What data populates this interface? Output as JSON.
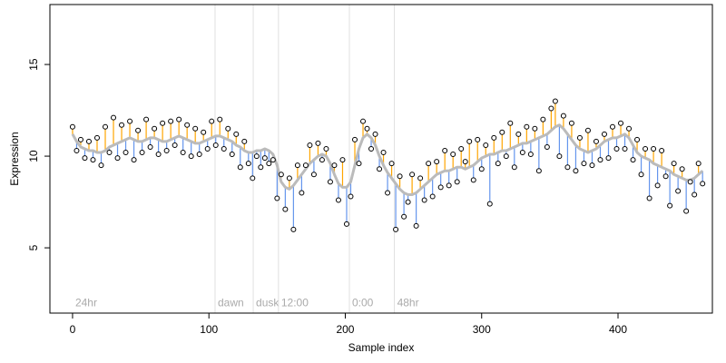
{
  "chart_data": {
    "type": "residual-line",
    "xlabel": "Sample index",
    "ylabel": "Expression",
    "xlim": [
      -16.6,
      469.2
    ],
    "ylim": [
      1.44,
      18.27
    ],
    "xticks": [
      0,
      100,
      200,
      300,
      400
    ],
    "yticks": [
      5,
      10,
      15
    ],
    "fit_color": "#bbbbbb",
    "above_color": "#ffa500",
    "below_color": "#6495ed",
    "events": [
      {
        "x": 0,
        "label": "24hr",
        "line": false
      },
      {
        "x": 104.5,
        "label": "dawn",
        "line": true
      },
      {
        "x": 132.5,
        "label": "dusk",
        "line": true
      },
      {
        "x": 151,
        "label": "12:00",
        "line": true
      },
      {
        "x": 203,
        "label": "0:00",
        "line": true
      },
      {
        "x": 236,
        "label": "48hr",
        "line": true
      }
    ],
    "event_label_y": 2.0,
    "x": [
      0,
      3,
      6,
      9,
      12,
      15,
      18,
      21,
      24,
      27,
      30,
      33,
      36,
      39,
      42,
      45,
      48,
      51,
      54,
      57,
      60,
      63,
      66,
      69,
      72,
      75,
      78,
      81,
      84,
      87,
      90,
      93,
      96,
      99,
      102,
      105,
      108,
      111,
      114,
      117,
      120,
      123,
      126,
      129,
      132,
      135,
      138,
      141,
      144,
      147,
      150,
      153,
      156,
      159,
      162,
      165,
      168,
      171,
      174,
      177,
      180,
      183,
      186,
      189,
      192,
      195,
      198,
      201,
      204,
      207,
      210,
      213,
      216,
      219,
      222,
      225,
      228,
      231,
      234,
      237,
      240,
      243,
      246,
      249,
      252,
      255,
      258,
      261,
      264,
      267,
      270,
      273,
      276,
      279,
      282,
      285,
      288,
      291,
      294,
      297,
      300,
      303,
      306,
      309,
      312,
      315,
      318,
      321,
      324,
      327,
      330,
      333,
      336,
      339,
      342,
      345,
      348,
      351,
      354,
      357,
      360,
      363,
      366,
      369,
      372,
      375,
      378,
      381,
      384,
      387,
      390,
      393,
      396,
      399,
      402,
      405,
      408,
      411,
      414,
      417,
      420,
      423,
      426,
      429,
      432,
      435,
      438,
      441,
      444,
      447,
      450,
      453,
      456,
      459,
      462
    ],
    "fitted": [
      11.2,
      10.8,
      10.5,
      10.4,
      10.3,
      10.3,
      10.2,
      10.2,
      10.3,
      10.5,
      10.6,
      10.7,
      10.8,
      10.9,
      11.0,
      10.9,
      10.8,
      10.8,
      10.9,
      11.0,
      11.0,
      10.9,
      10.8,
      10.8,
      10.9,
      11.0,
      11.1,
      11.0,
      10.9,
      10.8,
      10.7,
      10.7,
      10.8,
      10.9,
      11.0,
      11.1,
      11.1,
      11.0,
      10.9,
      10.8,
      10.6,
      10.5,
      10.3,
      10.2,
      10.2,
      10.3,
      10.3,
      10.4,
      10.3,
      10.1,
      9.5,
      8.6,
      8.3,
      8.2,
      8.4,
      8.7,
      9.0,
      9.3,
      9.6,
      9.8,
      10.0,
      10.1,
      10.0,
      9.6,
      9.0,
      8.5,
      8.3,
      8.3,
      8.6,
      9.5,
      10.4,
      11.0,
      11.2,
      11.0,
      10.6,
      10.0,
      9.5,
      9.1,
      8.8,
      8.5,
      8.2,
      8.0,
      7.9,
      7.9,
      8.0,
      8.2,
      8.4,
      8.6,
      8.8,
      9.0,
      9.1,
      9.2,
      9.2,
      9.3,
      9.4,
      9.4,
      9.3,
      9.4,
      9.5,
      9.7,
      9.9,
      10.0,
      10.1,
      10.1,
      10.2,
      10.3,
      10.3,
      10.4,
      10.5,
      10.6,
      10.7,
      10.7,
      10.8,
      10.9,
      11.0,
      11.1,
      11.2,
      11.4,
      11.6,
      11.7,
      11.5,
      11.2,
      10.9,
      10.6,
      10.4,
      10.3,
      10.2,
      10.3,
      10.4,
      10.6,
      10.8,
      10.9,
      11.0,
      11.0,
      11.1,
      11.2,
      11.0,
      10.6,
      10.2,
      10.0,
      9.9,
      9.8,
      9.6,
      9.5,
      9.4,
      9.3,
      9.2,
      9.0,
      8.9,
      8.8,
      8.7,
      8.7,
      8.8,
      9.0,
      9.2
    ],
    "values": [
      11.6,
      10.3,
      10.9,
      9.9,
      10.8,
      9.8,
      11.0,
      9.5,
      11.6,
      10.2,
      12.1,
      9.9,
      11.7,
      10.2,
      11.9,
      9.8,
      11.4,
      10.2,
      12.0,
      10.5,
      11.5,
      10.1,
      11.8,
      10.3,
      11.9,
      10.6,
      12.0,
      10.2,
      11.7,
      10.0,
      11.5,
      10.1,
      11.3,
      10.4,
      11.9,
      10.6,
      12.0,
      10.4,
      11.5,
      10.1,
      11.2,
      9.4,
      10.8,
      9.6,
      8.8,
      10.0,
      9.4,
      9.9,
      9.6,
      9.8,
      7.7,
      9.0,
      7.1,
      8.8,
      6.0,
      9.5,
      8.0,
      9.5,
      10.6,
      9.0,
      10.7,
      9.8,
      10.4,
      8.6,
      9.5,
      7.6,
      9.8,
      6.3,
      7.8,
      10.9,
      9.6,
      11.9,
      11.5,
      10.4,
      11.2,
      9.3,
      10.2,
      8.0,
      9.6,
      6.0,
      8.9,
      6.7,
      7.5,
      9.0,
      6.2,
      8.8,
      7.6,
      9.6,
      7.8,
      9.7,
      8.3,
      10.3,
      8.4,
      10.1,
      8.6,
      10.4,
      9.7,
      10.8,
      8.7,
      10.9,
      9.3,
      10.6,
      7.4,
      11.0,
      9.6,
      11.3,
      10.0,
      11.8,
      9.4,
      11.2,
      10.2,
      11.6,
      10.1,
      11.5,
      9.2,
      12.0,
      10.5,
      12.6,
      13.0,
      10.0,
      12.2,
      9.4,
      11.8,
      9.2,
      11.0,
      9.6,
      11.4,
      9.5,
      10.8,
      9.8,
      11.2,
      9.9,
      11.6,
      10.4,
      11.8,
      10.4,
      11.5,
      9.8,
      10.9,
      9.0,
      10.4,
      7.7,
      10.4,
      8.4,
      10.3,
      8.9,
      7.3,
      9.6,
      8.1,
      9.3,
      7.0,
      8.6,
      7.9,
      9.6,
      8.5
    ]
  }
}
